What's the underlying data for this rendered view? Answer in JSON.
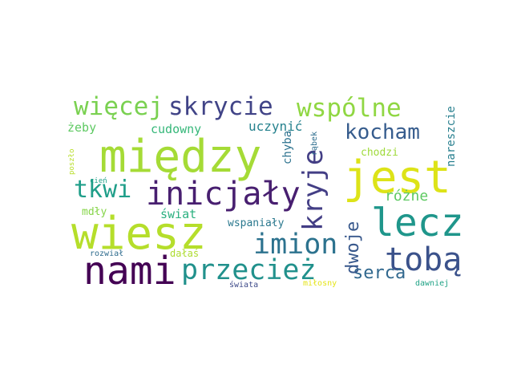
{
  "words": [
    {
      "text": "między",
      "color": "#a5db36",
      "vertical": false
    },
    {
      "text": "wiesz",
      "color": "#b5de2b",
      "vertical": false
    },
    {
      "text": "jest",
      "color": "#dde318",
      "vertical": false
    },
    {
      "text": "lecz",
      "color": "#1f968b",
      "vertical": false
    },
    {
      "text": "nami",
      "color": "#440154",
      "vertical": false
    },
    {
      "text": "inicjały",
      "color": "#481f70",
      "vertical": false
    },
    {
      "text": "przecież",
      "color": "#21918c",
      "vertical": false
    },
    {
      "text": "imion",
      "color": "#2c728e",
      "vertical": false
    },
    {
      "text": "tobą",
      "color": "#3b528b",
      "vertical": false
    },
    {
      "text": "kryje",
      "color": "#433e85",
      "vertical": true
    },
    {
      "text": "więcej",
      "color": "#7ad151",
      "vertical": false
    },
    {
      "text": "skrycie",
      "color": "#414487",
      "vertical": false
    },
    {
      "text": "wspólne",
      "color": "#90d743",
      "vertical": false
    },
    {
      "text": "kocham",
      "color": "#365c8d",
      "vertical": false
    },
    {
      "text": "tkwi",
      "color": "#1f9e89",
      "vertical": false
    },
    {
      "text": "serca",
      "color": "#31688e",
      "vertical": false
    },
    {
      "text": "dwoje",
      "color": "#38588c",
      "vertical": true
    },
    {
      "text": "różne",
      "color": "#5ec962",
      "vertical": false
    },
    {
      "text": "uczynić",
      "color": "#26828e",
      "vertical": false
    },
    {
      "text": "cudowny",
      "color": "#35b779",
      "vertical": false
    },
    {
      "text": "żeby",
      "color": "#5ec962",
      "vertical": false
    },
    {
      "text": "świat",
      "color": "#2ab07f",
      "vertical": false
    },
    {
      "text": "wspaniały",
      "color": "#2a788e",
      "vertical": false
    },
    {
      "text": "mdły",
      "color": "#86d549",
      "vertical": false
    },
    {
      "text": "chyba",
      "color": "#2c728e",
      "vertical": true
    },
    {
      "text": "nareszcie",
      "color": "#277f8e",
      "vertical": true
    },
    {
      "text": "chodzi",
      "color": "#9fda3a",
      "vertical": false
    },
    {
      "text": "dałaś",
      "color": "#addc30",
      "vertical": false
    },
    {
      "text": "rozwiał",
      "color": "#2f6c8e",
      "vertical": false
    },
    {
      "text": "świata",
      "color": "#3e4a89",
      "vertical": false
    },
    {
      "text": "miłosny",
      "color": "#e5e419",
      "vertical": false
    },
    {
      "text": "dawniej",
      "color": "#20a386",
      "vertical": false
    },
    {
      "text": "rąbek",
      "color": "#2e6e8e",
      "vertical": true
    },
    {
      "text": "poszło",
      "color": "#b8de29",
      "vertical": true
    },
    {
      "text": "cień",
      "color": "#1fa188",
      "vertical": false
    }
  ]
}
